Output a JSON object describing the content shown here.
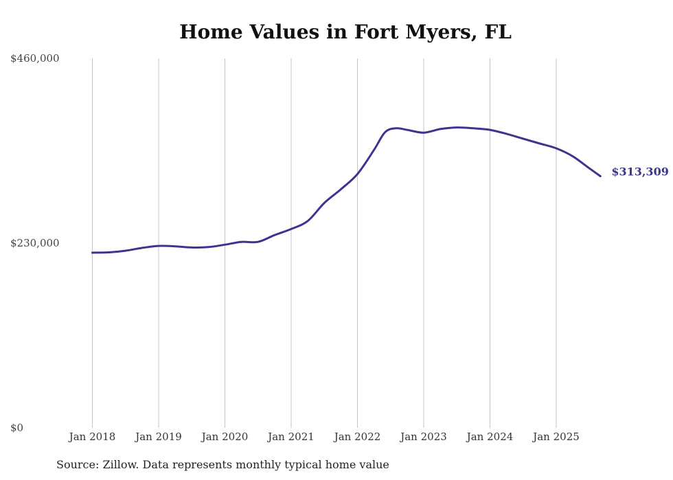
{
  "chart_data": {
    "type": "line",
    "title": "Home Values in Fort Myers, FL",
    "xlabel": "",
    "ylabel": "",
    "ylim": [
      0,
      460000
    ],
    "y_ticks": [
      {
        "value": 0,
        "label": "$0"
      },
      {
        "value": 230000,
        "label": "$230,000"
      },
      {
        "value": 460000,
        "label": "$460,000"
      }
    ],
    "x_ticks": [
      "Jan 2018",
      "Jan 2019",
      "Jan 2020",
      "Jan 2021",
      "Jan 2022",
      "Jan 2023",
      "Jan 2024",
      "Jan 2025"
    ],
    "grid": "vertical",
    "series_color": "#3b3590",
    "end_label": "$313,309",
    "series": [
      {
        "x": [
          "2018-01",
          "2018-04",
          "2018-07",
          "2018-10",
          "2019-01",
          "2019-04",
          "2019-07",
          "2019-10",
          "2020-01",
          "2020-04",
          "2020-07",
          "2020-10",
          "2021-01",
          "2021-04",
          "2021-07",
          "2021-10",
          "2022-01",
          "2022-04",
          "2022-06",
          "2022-08",
          "2022-10",
          "2023-01",
          "2023-04",
          "2023-07",
          "2023-10",
          "2024-01",
          "2024-04",
          "2024-07",
          "2024-10",
          "2025-01",
          "2025-04",
          "2025-07",
          "2025-09"
        ],
        "values": [
          218000,
          218500,
          220500,
          224000,
          226500,
          226000,
          224500,
          225000,
          228000,
          231500,
          231500,
          240000,
          247500,
          257500,
          280000,
          297000,
          316000,
          346000,
          368000,
          373000,
          371000,
          367500,
          372000,
          374000,
          373000,
          371000,
          366000,
          360000,
          354000,
          348000,
          338000,
          323000,
          313309
        ]
      }
    ]
  },
  "source": "Source: Zillow. Data represents monthly typical home value"
}
